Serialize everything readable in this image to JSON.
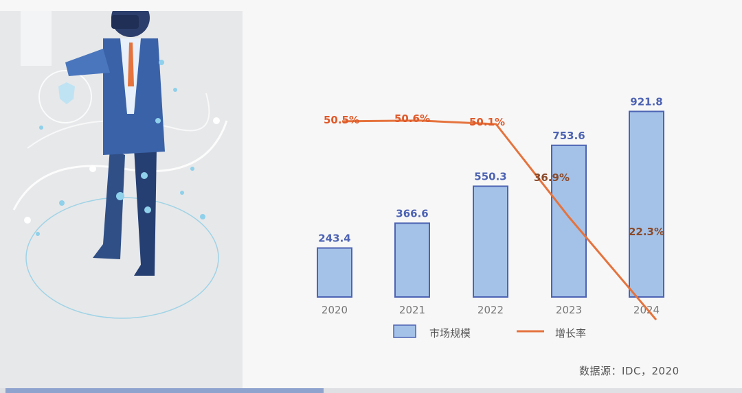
{
  "chart_data": {
    "type": "bar",
    "categories": [
      "2020",
      "2021",
      "2022",
      "2023",
      "2024"
    ],
    "series": [
      {
        "name": "市场规模",
        "type": "bar",
        "values": [
          243.4,
          366.6,
          550.3,
          753.6,
          921.8
        ],
        "color": "#a4c2e8",
        "stroke": "#4d63b3"
      },
      {
        "name": "增长率",
        "type": "line",
        "values": [
          50.5,
          50.6,
          50.1,
          36.9,
          22.3
        ],
        "labels": [
          "50.5%",
          "50.6%",
          "50.1%",
          "36.9%",
          "22.3%"
        ],
        "color": "#e5733d"
      }
    ],
    "bar_labels": [
      "243.4",
      "366.6",
      "550.3",
      "753.6",
      "921.8"
    ],
    "legend": "bottom-center",
    "colors": {
      "bar_label": "#4d63b3",
      "line_label": "#e05a2a",
      "line_label_overlap": "#8a4a2a",
      "axis_text": "#777777"
    }
  },
  "source_text": "数据源：IDC，2020"
}
